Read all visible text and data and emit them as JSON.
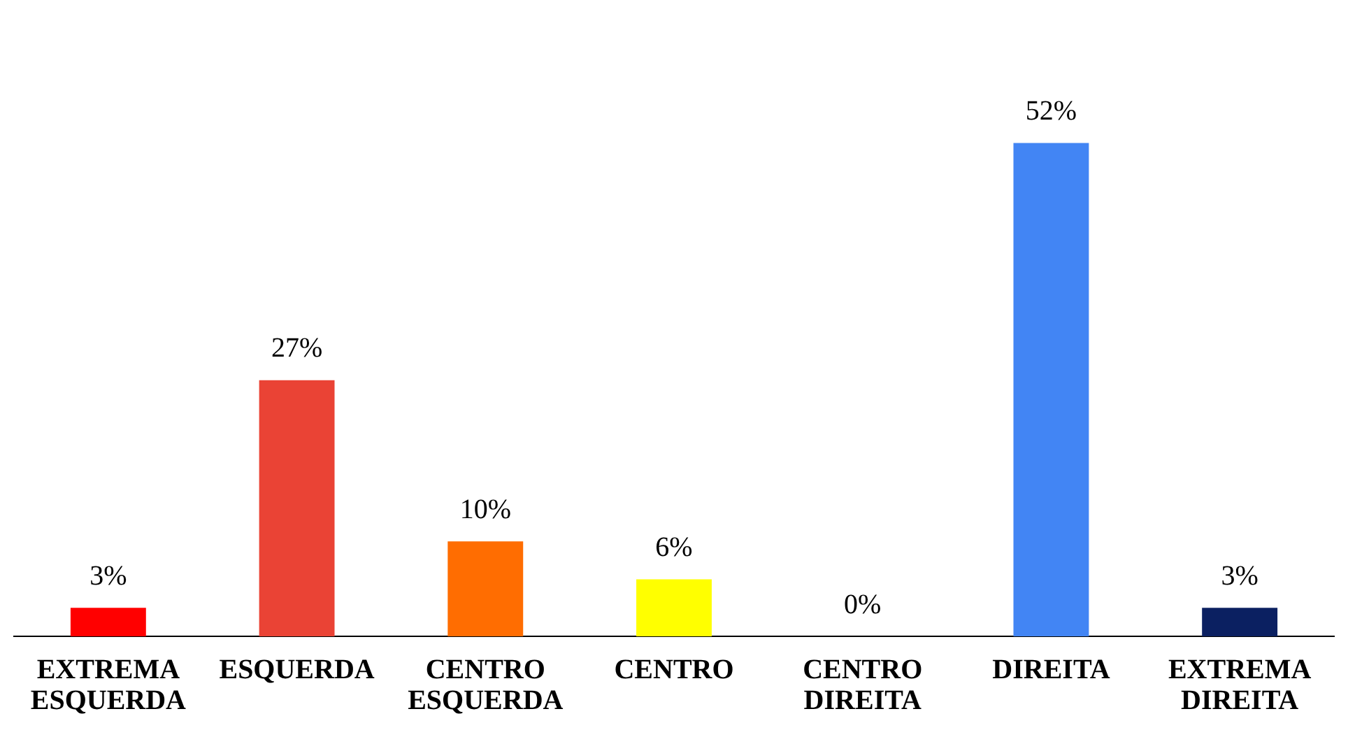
{
  "chart_data": {
    "type": "bar",
    "categories": [
      "EXTREMA ESQUERDA",
      "ESQUERDA",
      "CENTRO ESQUERDA",
      "CENTRO",
      "CENTRO DIREITA",
      "DIREITA",
      "EXTREMA DIREITA"
    ],
    "values": [
      3,
      27,
      10,
      6,
      0,
      52,
      3
    ],
    "colors": [
      "#ff0000",
      "#ea4335",
      "#ff6d01",
      "#ffff00",
      "#34a853",
      "#4285f4",
      "#0b2061"
    ],
    "value_labels": [
      "3%",
      "27%",
      "10%",
      "6%",
      "0%",
      "52%",
      "3%"
    ],
    "grid": false,
    "legend": false
  }
}
